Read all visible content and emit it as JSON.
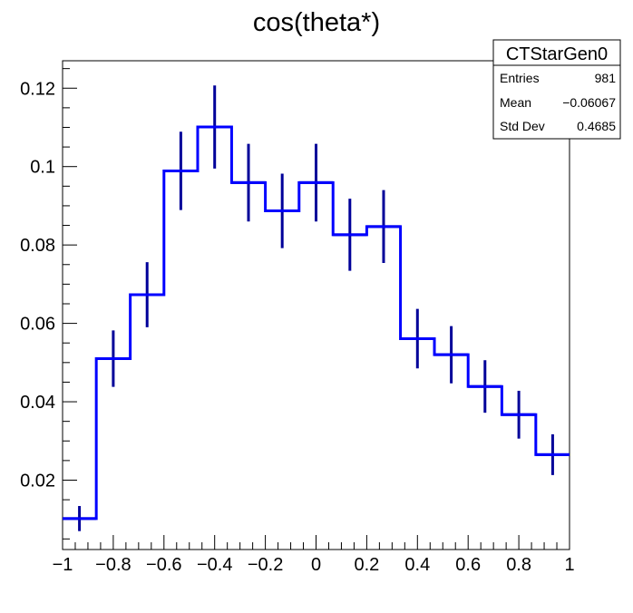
{
  "chart_data": {
    "type": "histogram",
    "title": "cos(theta*)",
    "xlabel": "",
    "ylabel": "",
    "xlim": [
      -1,
      1
    ],
    "ylim": [
      0.0023,
      0.127
    ],
    "bin_edges": [
      -1,
      -0.867,
      -0.733,
      -0.6,
      -0.467,
      -0.333,
      -0.2,
      -0.067,
      0.067,
      0.2,
      0.333,
      0.467,
      0.6,
      0.733,
      0.867,
      1
    ],
    "values": [
      0.0102,
      0.051,
      0.0673,
      0.0989,
      0.1101,
      0.0959,
      0.0887,
      0.0959,
      0.0826,
      0.0847,
      0.0561,
      0.052,
      0.0439,
      0.0367,
      0.0265
    ],
    "errors": [
      0.0032,
      0.0072,
      0.0083,
      0.01,
      0.0106,
      0.0099,
      0.0095,
      0.0099,
      0.0092,
      0.0093,
      0.0076,
      0.0073,
      0.0067,
      0.0061,
      0.0052
    ],
    "x_ticks": [
      -1,
      -0.8,
      -0.6,
      -0.4,
      -0.2,
      0,
      0.2,
      0.4,
      0.6,
      0.8,
      1
    ],
    "x_tick_labels": [
      "−1",
      "−0.8",
      "−0.6",
      "−0.4",
      "−0.2",
      "0",
      "0.2",
      "0.4",
      "0.6",
      "0.8",
      "1"
    ],
    "y_ticks": [
      0.02,
      0.04,
      0.06,
      0.08,
      0.1,
      0.12
    ],
    "y_tick_labels": [
      "0.02",
      "0.04",
      "0.06",
      "0.08",
      "0.1",
      "0.12"
    ],
    "grid": false,
    "line_color": "#0000ff",
    "error_color": "#000099",
    "stats_box": {
      "placement": "top-right",
      "name": "CTStarGen0",
      "rows": [
        {
          "label": "Entries",
          "value": "981"
        },
        {
          "label": "Mean",
          "value": "−0.06067"
        },
        {
          "label": "Std Dev",
          "value": "0.4685"
        }
      ]
    }
  }
}
